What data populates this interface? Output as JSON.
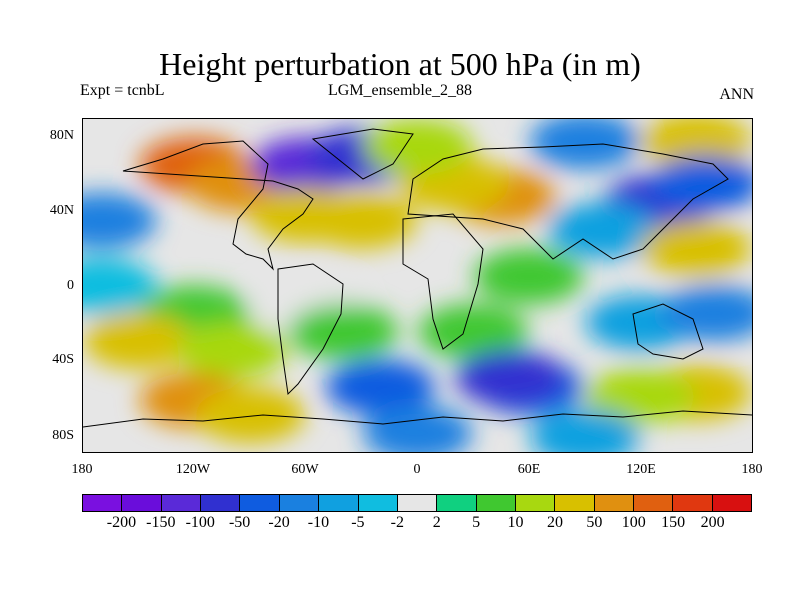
{
  "title": "Height perturbation at 500 hPa (in m)",
  "left_label": "Expt = tcnbL",
  "center_label": "LGM_ensemble_2_88",
  "right_label": "ANN",
  "map": {
    "type": "heatmap",
    "projection": "cylindrical equidistant",
    "lon_range": [
      -180,
      180
    ],
    "lat_range": [
      -90,
      90
    ],
    "lat_ticks": [
      "80N",
      "40N",
      "0",
      "40S",
      "80S"
    ],
    "lon_ticks": [
      "180",
      "120W",
      "60W",
      "0",
      "60E",
      "120E",
      "180"
    ],
    "coastlines": true,
    "field_regions": [
      {
        "lon": -120,
        "lat": 65,
        "value": 120
      },
      {
        "lon": -95,
        "lat": 55,
        "value": 60
      },
      {
        "lon": -60,
        "lat": 65,
        "value": -120
      },
      {
        "lon": -30,
        "lat": 70,
        "value": -60
      },
      {
        "lon": -60,
        "lat": 38,
        "value": 30
      },
      {
        "lon": -30,
        "lat": 35,
        "value": 20
      },
      {
        "lon": 45,
        "lat": 48,
        "value": 55
      },
      {
        "lon": 20,
        "lat": 55,
        "value": 30
      },
      {
        "lon": 0,
        "lat": 75,
        "value": 15
      },
      {
        "lon": 90,
        "lat": 78,
        "value": -15
      },
      {
        "lon": 150,
        "lat": 78,
        "value": 20
      },
      {
        "lon": 130,
        "lat": 45,
        "value": -60
      },
      {
        "lon": 155,
        "lat": 55,
        "value": -30
      },
      {
        "lon": 100,
        "lat": 30,
        "value": -10
      },
      {
        "lon": 150,
        "lat": 20,
        "value": 25
      },
      {
        "lon": -170,
        "lat": 35,
        "value": -20
      },
      {
        "lon": -170,
        "lat": 0,
        "value": -5
      },
      {
        "lon": 60,
        "lat": 5,
        "value": 5
      },
      {
        "lon": -60,
        "lat": -10,
        "value": 0
      },
      {
        "lon": -120,
        "lat": -15,
        "value": 5
      },
      {
        "lon": -150,
        "lat": -30,
        "value": 20
      },
      {
        "lon": -100,
        "lat": -35,
        "value": 15
      },
      {
        "lon": -40,
        "lat": -25,
        "value": 8
      },
      {
        "lon": 30,
        "lat": -25,
        "value": 5
      },
      {
        "lon": 120,
        "lat": -20,
        "value": -10
      },
      {
        "lon": 160,
        "lat": -15,
        "value": -15
      },
      {
        "lon": -120,
        "lat": -62,
        "value": 60
      },
      {
        "lon": -90,
        "lat": -70,
        "value": 30
      },
      {
        "lon": 150,
        "lat": -58,
        "value": 30
      },
      {
        "lon": 120,
        "lat": -60,
        "value": 15
      },
      {
        "lon": -20,
        "lat": -55,
        "value": -30
      },
      {
        "lon": 60,
        "lat": -55,
        "value": -25
      },
      {
        "lon": 50,
        "lat": -50,
        "value": -60
      },
      {
        "lon": 0,
        "lat": -80,
        "value": -20
      },
      {
        "lon": 90,
        "lat": -82,
        "value": -10
      }
    ]
  },
  "colorbar": {
    "labels": [
      "-200",
      "-150",
      "-100",
      "-50",
      "-20",
      "-10",
      "-5",
      "-2",
      "2",
      "5",
      "10",
      "20",
      "50",
      "100",
      "150",
      "200"
    ],
    "levels": [
      -200,
      -150,
      -100,
      -50,
      -20,
      -10,
      -5,
      -2,
      2,
      5,
      10,
      20,
      50,
      100,
      150,
      200
    ],
    "colors": [
      "#7a10e0",
      "#6a0ddb",
      "#5a2ad8",
      "#3030d0",
      "#0f5ce0",
      "#1a80e0",
      "#10a0e0",
      "#10bde0",
      "#e6e6e6",
      "#10d080",
      "#40c830",
      "#a8d810",
      "#d8c000",
      "#e09010",
      "#e06010",
      "#e03810",
      "#d81010"
    ]
  }
}
